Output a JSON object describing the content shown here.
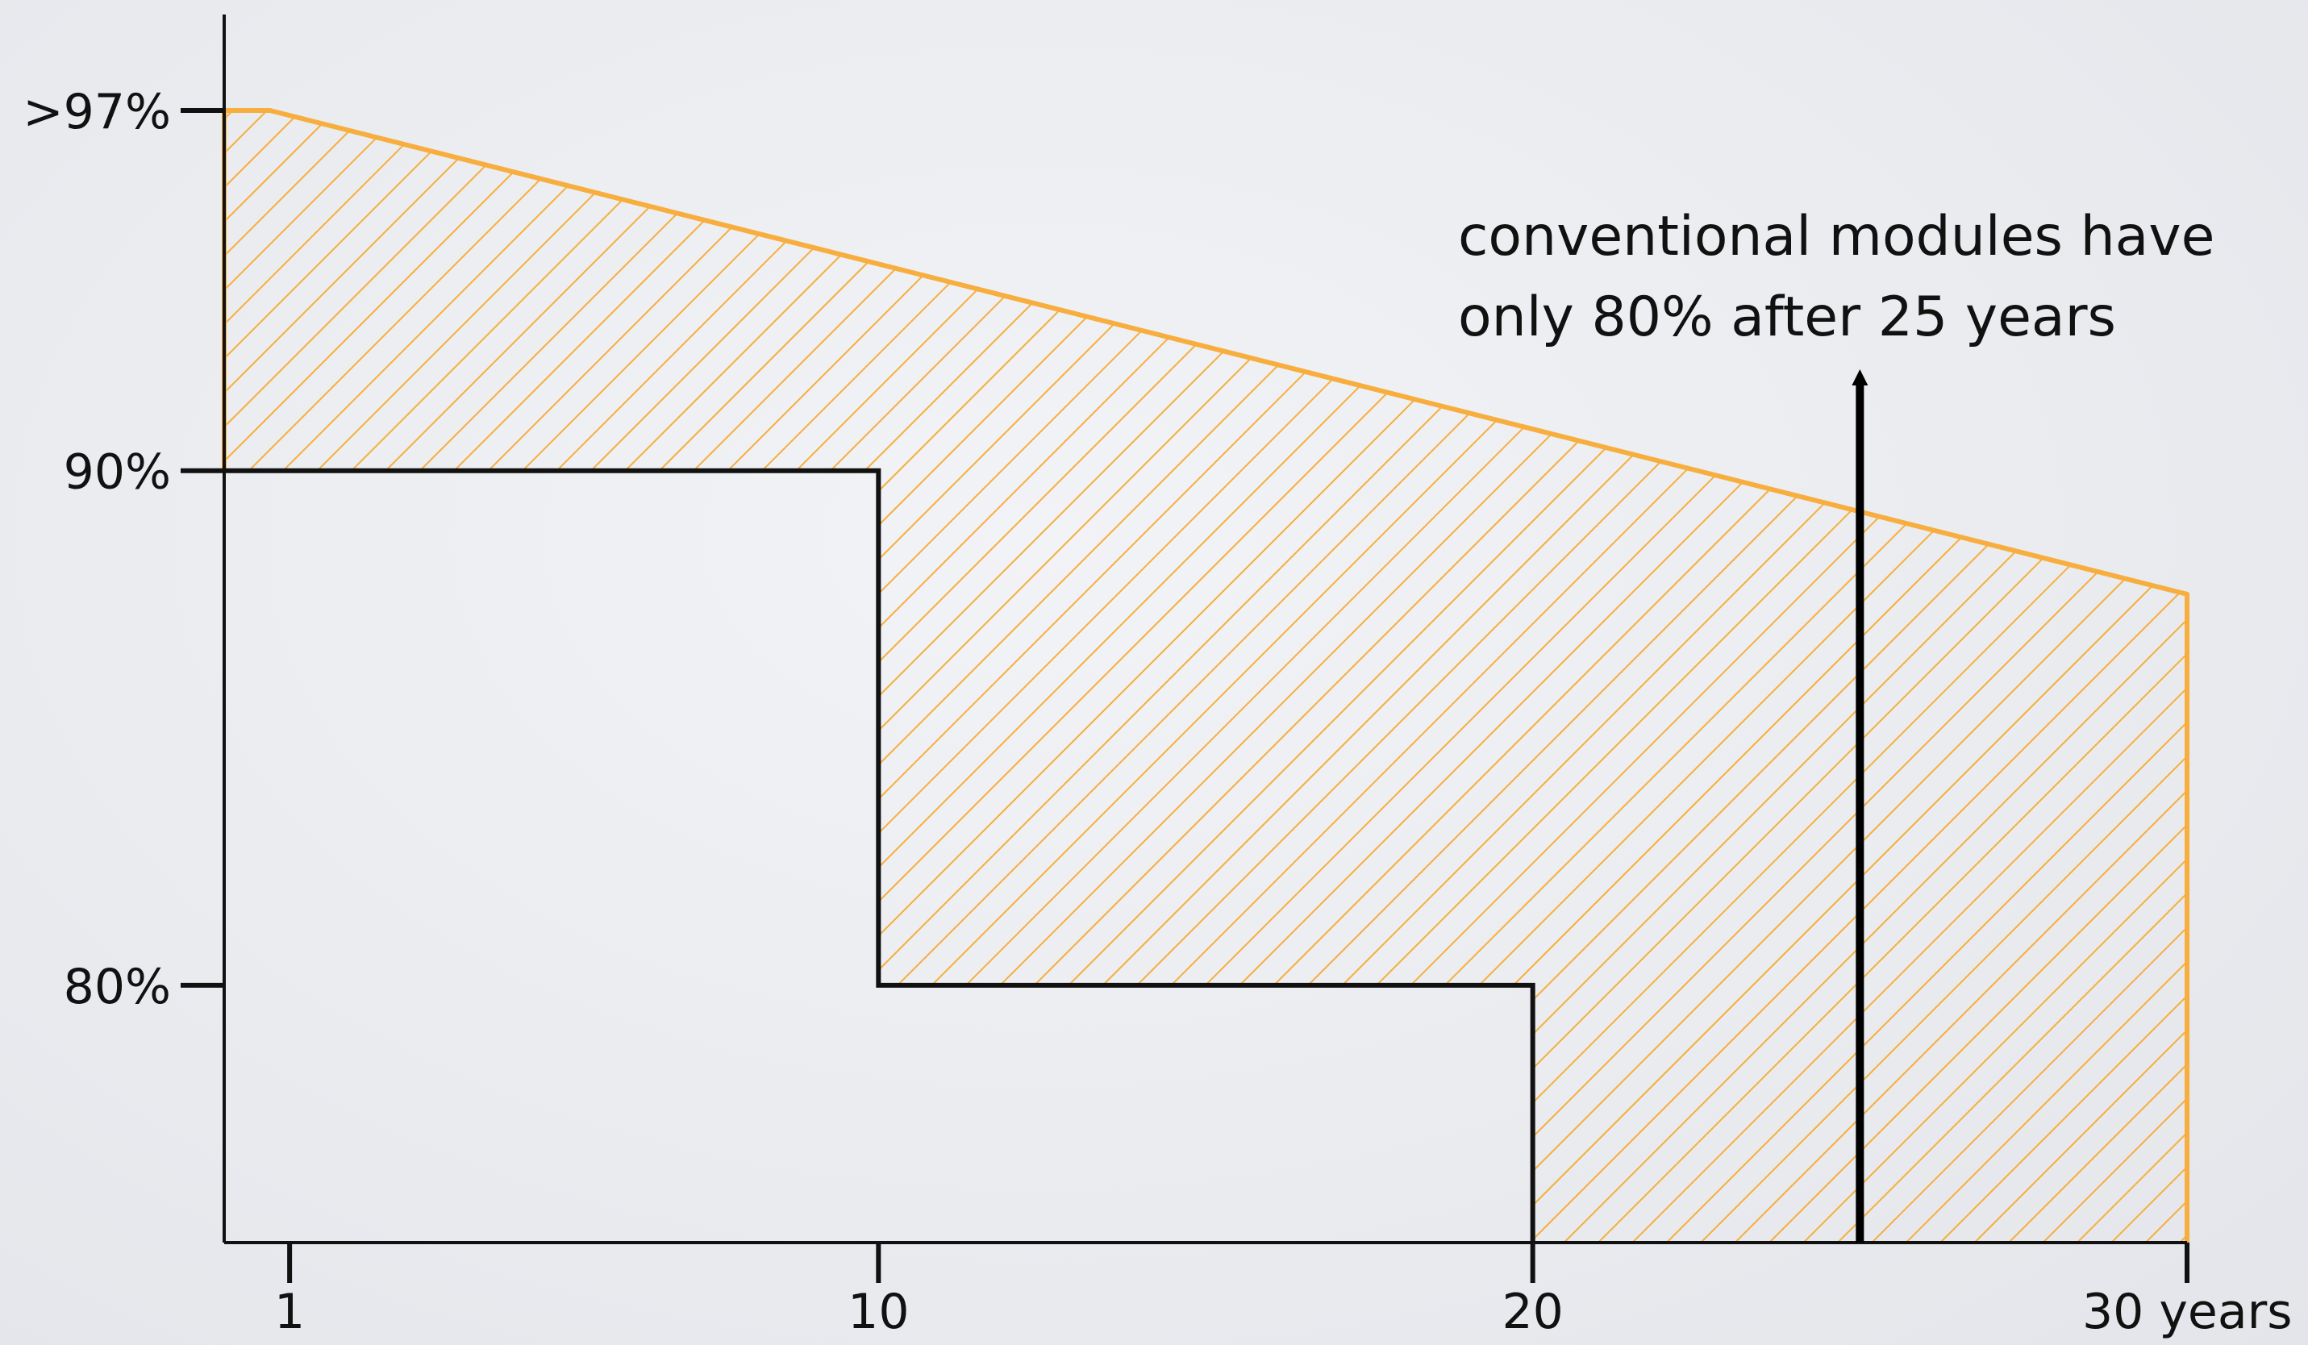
{
  "chart_data": {
    "type": "area",
    "title": "",
    "xlabel": "",
    "ylabel": "",
    "x_ticks": [
      {
        "value": 1,
        "label": "1"
      },
      {
        "value": 10,
        "label": "10"
      },
      {
        "value": 20,
        "label": "20"
      },
      {
        "value": 30,
        "label": "30 years"
      }
    ],
    "y_ticks": [
      {
        "value": 97,
        "label": ">97%"
      },
      {
        "value": 90,
        "label": "90%"
      },
      {
        "value": 80,
        "label": "80%"
      }
    ],
    "xlim": [
      0,
      30
    ],
    "ylim": [
      75,
      98.5
    ],
    "series": [
      {
        "kind": "guaranteed-performance-line",
        "points": [
          [
            0,
            97
          ],
          [
            0.7,
            97
          ],
          [
            30,
            87.6
          ]
        ],
        "fill": "hatched"
      },
      {
        "kind": "step-guarantee-line",
        "points": [
          [
            0,
            90
          ],
          [
            10,
            90
          ],
          [
            10,
            80
          ],
          [
            20,
            80
          ],
          [
            20,
            75
          ]
        ]
      }
    ],
    "annotation": {
      "lines": [
        "conventional modules have",
        "only 80% after 25 years"
      ],
      "arrow_x": 25
    },
    "grid": false,
    "legend": "none",
    "colors": {
      "accent": "#f7ae3e",
      "step": "#111111",
      "axis": "#111111"
    }
  }
}
